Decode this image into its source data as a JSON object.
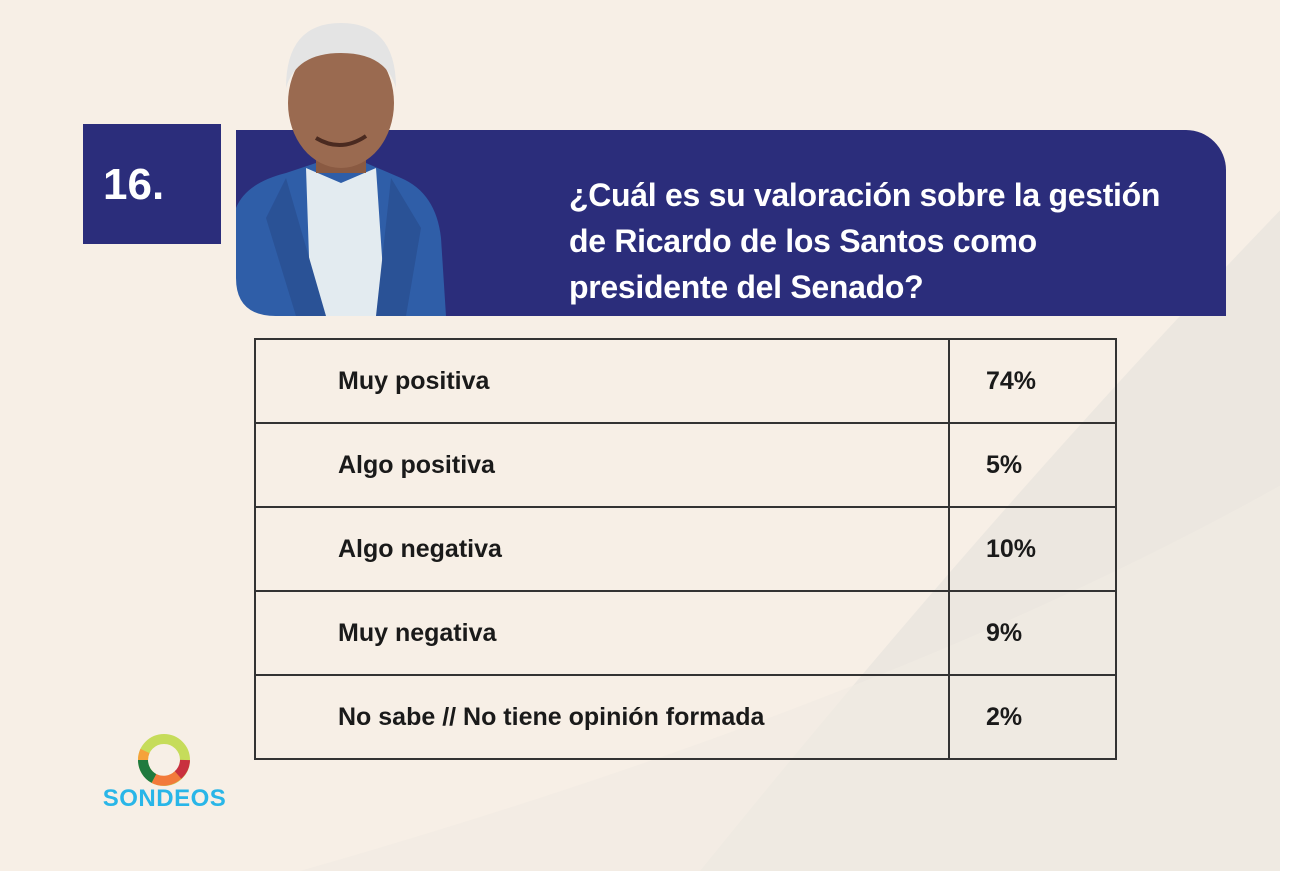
{
  "question_number": "16.",
  "question": "¿Cuál es su valoración sobre la gestión de Ricardo de los Santos como presidente del Senado?",
  "brand": {
    "logo_text": "SONDEOS",
    "primary_color": "#2b2d7b",
    "logo_text_color": "#29b6e8"
  },
  "chart_data": {
    "type": "table",
    "title": "¿Cuál es su valoración sobre la gestión de Ricardo de los Santos como presidente del Senado?",
    "rows": [
      {
        "label": "Muy positiva",
        "value": "74%"
      },
      {
        "label": "Algo positiva",
        "value": "5%"
      },
      {
        "label": "Algo negativa",
        "value": "10%"
      },
      {
        "label": "Muy negativa",
        "value": "9%"
      },
      {
        "label": "No sabe // No tiene opinión formada",
        "value": "2%"
      }
    ]
  }
}
